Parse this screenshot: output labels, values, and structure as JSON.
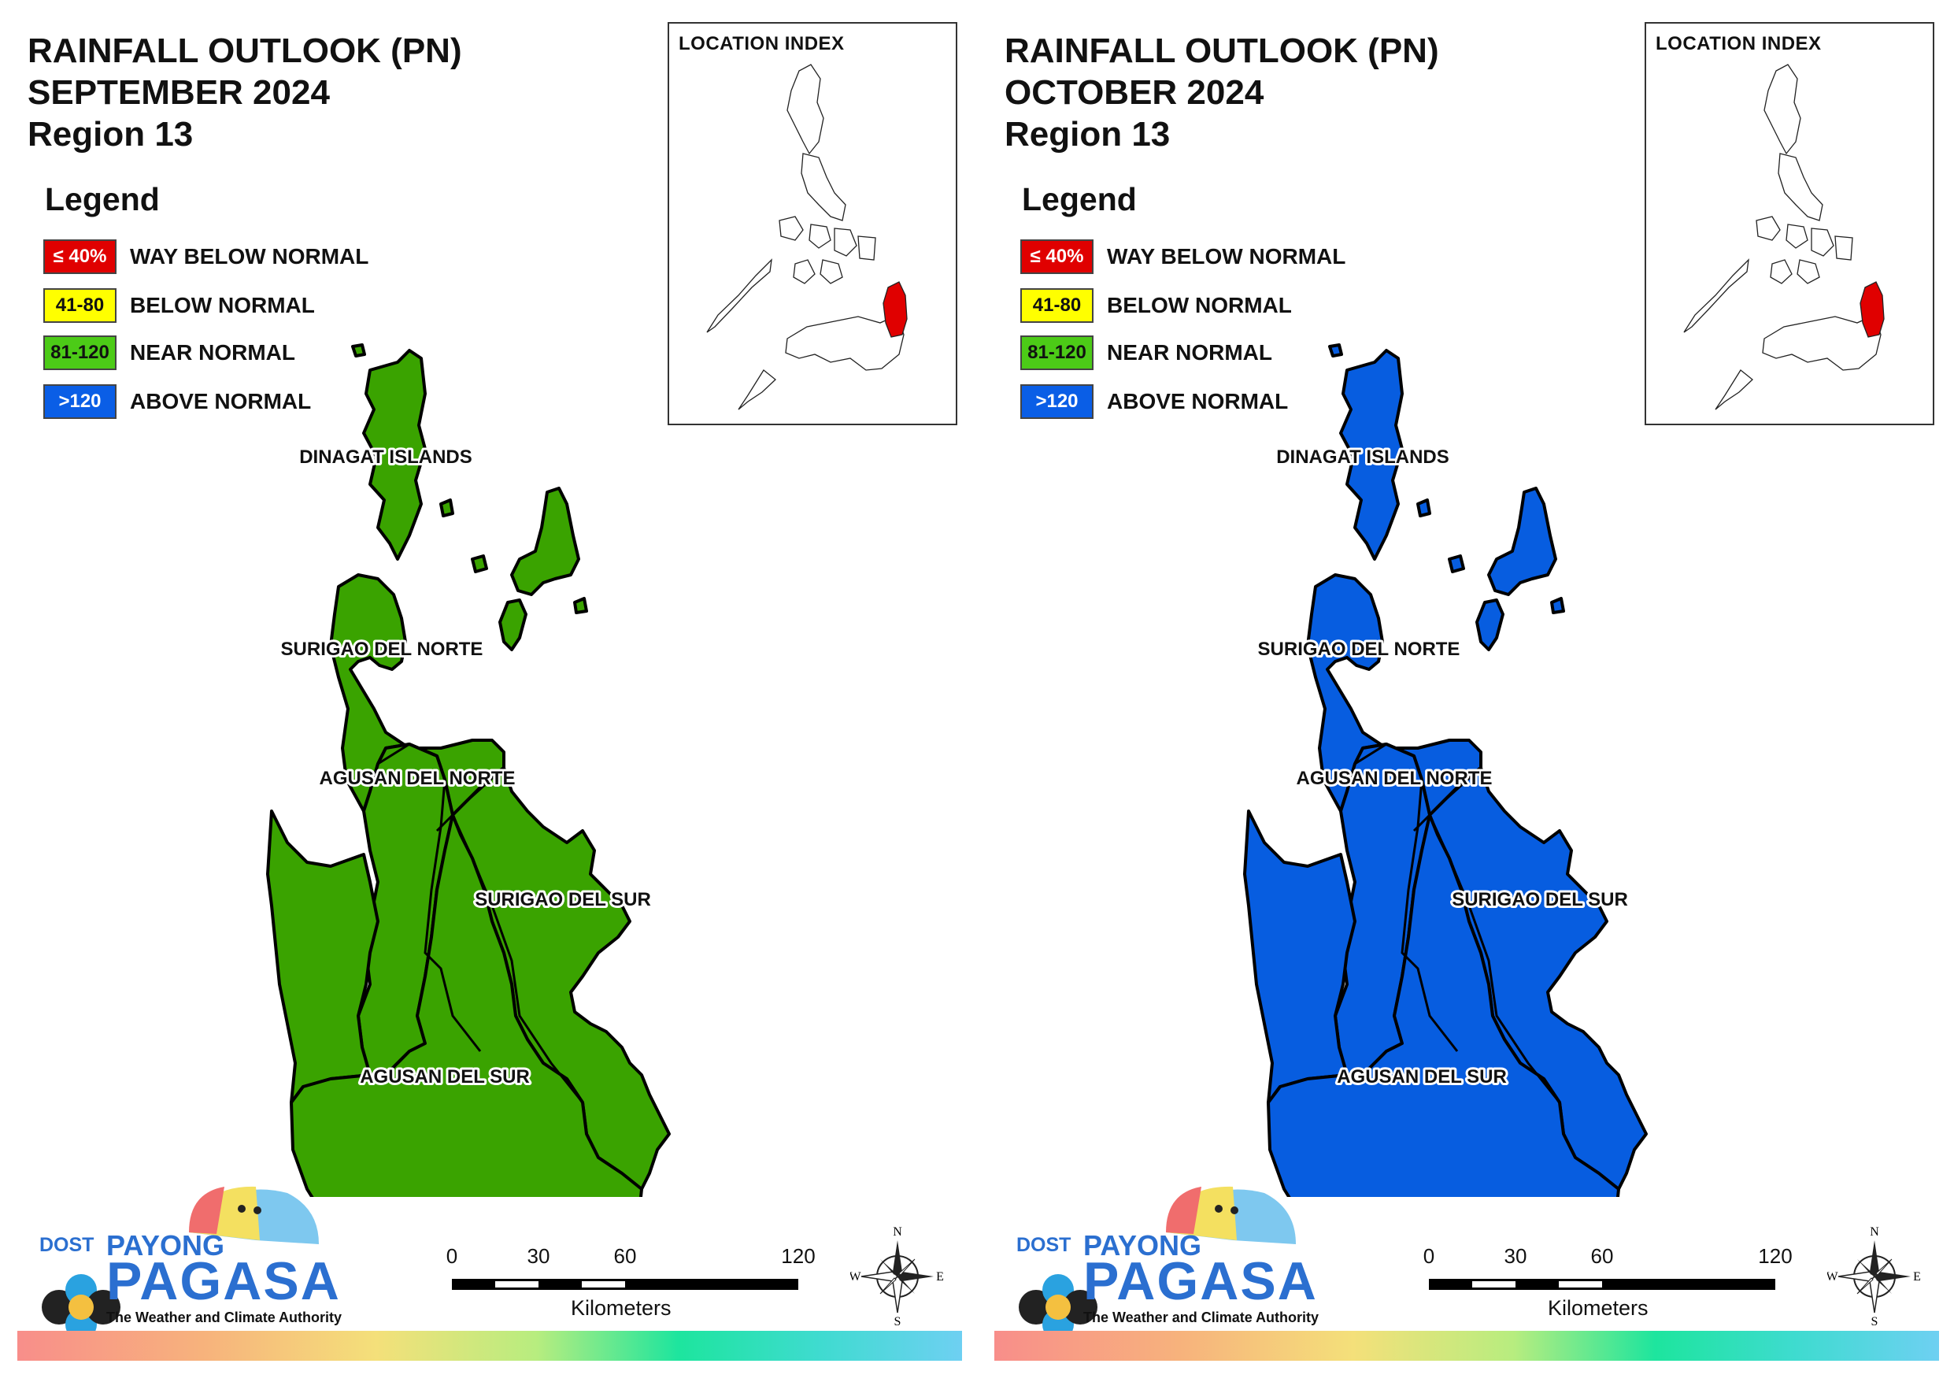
{
  "panels": [
    {
      "title_line1": "RAINFALL OUTLOOK (PN)",
      "title_line2": "SEPTEMBER 2024",
      "title_line3": "Region 13",
      "fill_color": "#3aa300",
      "category": "NEAR NORMAL"
    },
    {
      "title_line1": "RAINFALL OUTLOOK (PN)",
      "title_line2": "OCTOBER 2024",
      "title_line3": "Region 13",
      "fill_color": "#075de0",
      "category": "ABOVE NORMAL"
    }
  ],
  "legend": {
    "heading": "Legend",
    "items": [
      {
        "swatch": "≤ 40%",
        "label": "WAY BELOW NORMAL",
        "color": "#e00000",
        "text_color": "#ffffff"
      },
      {
        "swatch": "41-80",
        "label": "BELOW NORMAL",
        "color": "#ffff00",
        "text_color": "#111111"
      },
      {
        "swatch": "81-120",
        "label": "NEAR NORMAL",
        "color": "#4ccb17",
        "text_color": "#111111"
      },
      {
        "swatch": ">120",
        "label": "ABOVE NORMAL",
        "color": "#0a5ee6",
        "text_color": "#ffffff"
      }
    ]
  },
  "inset": {
    "title": "LOCATION INDEX",
    "highlight_color": "#e00000"
  },
  "provinces": [
    {
      "name": "DINAGAT ISLANDS"
    },
    {
      "name": "SURIGAO DEL NORTE"
    },
    {
      "name": "AGUSAN DEL NORTE"
    },
    {
      "name": "SURIGAO DEL SUR"
    },
    {
      "name": "AGUSAN DEL SUR"
    }
  ],
  "logo": {
    "dost": "DOST",
    "payong": "PAYONG",
    "pagasa": "PAGASA",
    "tagline": "The Weather and Climate Authority"
  },
  "scale": {
    "ticks": [
      "0",
      "30",
      "60",
      "120"
    ],
    "unit": "Kilometers"
  },
  "compass": {
    "n": "N",
    "s": "S",
    "e": "E",
    "w": "W"
  }
}
